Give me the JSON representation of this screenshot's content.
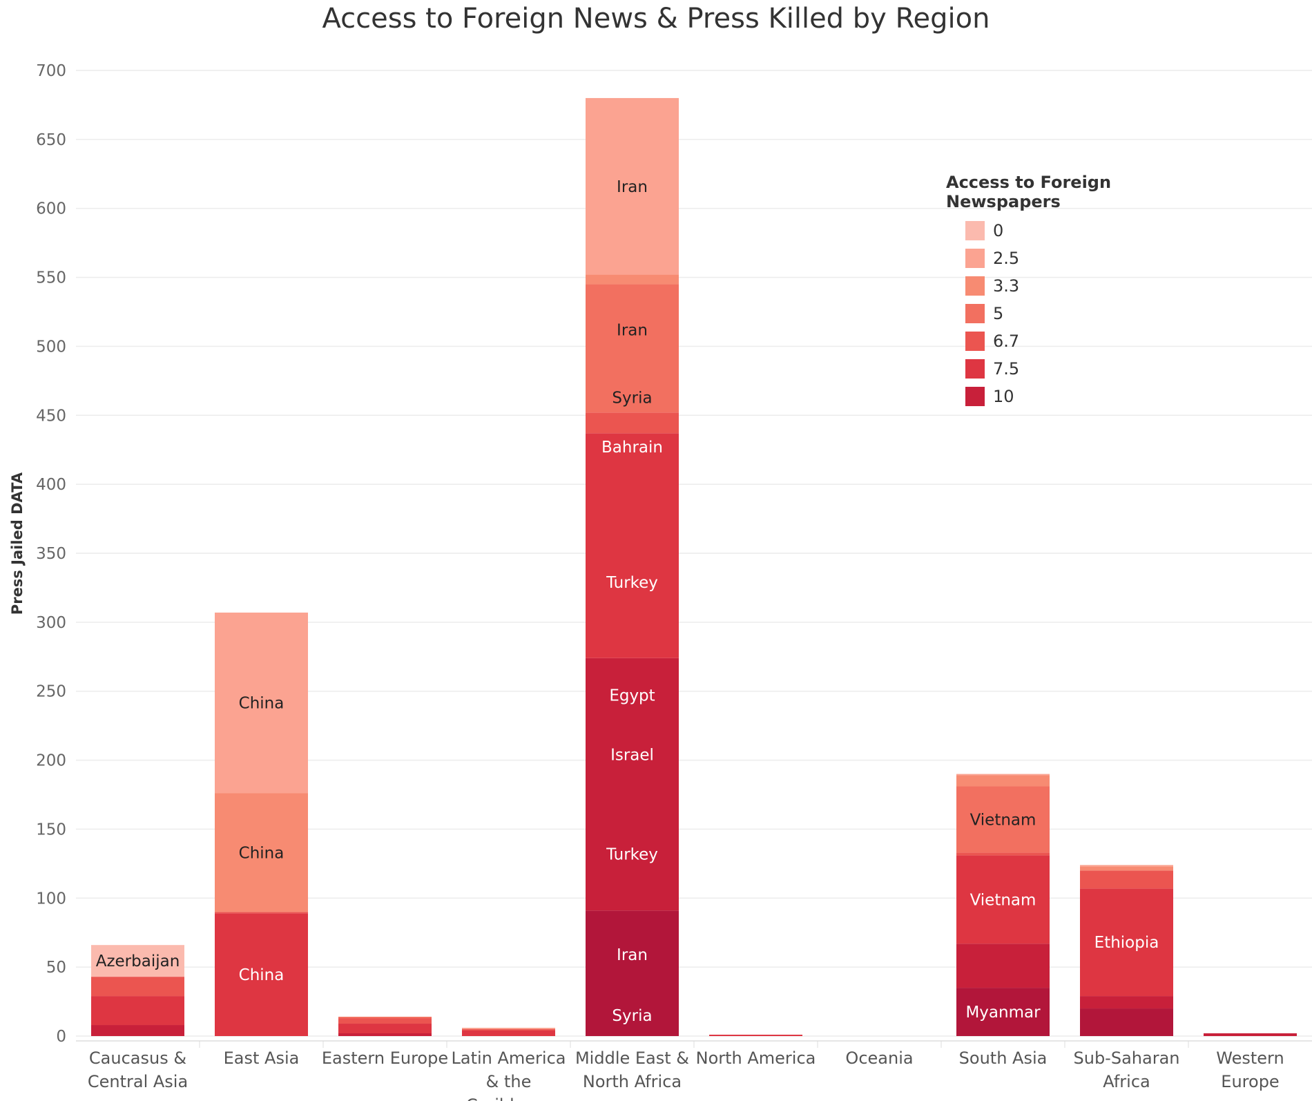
{
  "chart_data": {
    "type": "bar",
    "stacked": true,
    "title": "Access to Foreign News & Press Killed  by Region",
    "ylabel": "Press Jailed DATA",
    "xlabel": "",
    "ylim": [
      -8,
      715
    ],
    "yticks": [
      0,
      50,
      100,
      150,
      200,
      250,
      300,
      350,
      400,
      450,
      500,
      550,
      600,
      650,
      700
    ],
    "grid": true,
    "legend": {
      "title": "Access to Foreign Newspapers",
      "placement": "right",
      "items": [
        {
          "label": "0",
          "color": "#fbbaae"
        },
        {
          "label": "2.5",
          "color": "#fba391"
        },
        {
          "label": "3.3",
          "color": "#f78b72"
        },
        {
          "label": "5",
          "color": "#f27060"
        },
        {
          "label": "6.7",
          "color": "#eb5550"
        },
        {
          "label": "7.5",
          "color": "#de3642"
        },
        {
          "label": "10",
          "color": "#c8203a"
        }
      ]
    },
    "categories": [
      {
        "name": "Caucasus & Central Asia",
        "lines": [
          "Caucasus &",
          "Central Asia"
        ],
        "segments": [
          {
            "value": 8,
            "color": "#c8203a",
            "label": ""
          },
          {
            "value": 21,
            "color": "#de3642",
            "label": ""
          },
          {
            "value": 14,
            "color": "#eb5550",
            "label": ""
          },
          {
            "value": 23,
            "color": "#fbbaae",
            "label": "Azerbaijan",
            "dark": true
          }
        ]
      },
      {
        "name": "East Asia",
        "lines": [
          "East Asia"
        ],
        "segments": [
          {
            "value": 89,
            "color": "#de3642",
            "label": "China"
          },
          {
            "value": 1,
            "color": "#eb5550",
            "label": ""
          },
          {
            "value": 86,
            "color": "#f78b72",
            "label": "China",
            "dark": true
          },
          {
            "value": 131,
            "color": "#fba391",
            "label": "China",
            "dark": true
          }
        ]
      },
      {
        "name": "Eastern Europe",
        "lines": [
          "Eastern Europe"
        ],
        "segments": [
          {
            "value": 2,
            "color": "#c8203a",
            "label": ""
          },
          {
            "value": 7,
            "color": "#de3642",
            "label": ""
          },
          {
            "value": 4,
            "color": "#eb5550",
            "label": ""
          },
          {
            "value": 1,
            "color": "#f27060",
            "label": ""
          }
        ]
      },
      {
        "name": "Latin America & the Caribbean",
        "lines": [
          "Latin America",
          "& the",
          "Caribbean"
        ],
        "segments": [
          {
            "value": 4,
            "color": "#de3642",
            "label": ""
          },
          {
            "value": 1,
            "color": "#eb5550",
            "label": ""
          },
          {
            "value": 1,
            "color": "#fba391",
            "label": ""
          }
        ]
      },
      {
        "name": "Middle East & North Africa",
        "lines": [
          "Middle East &",
          "North Africa"
        ],
        "segments": [
          {
            "value": 91,
            "color": "#b2163a",
            "label": "",
            "labels": [
              {
                "text": "Syria",
                "at": 15
              },
              {
                "text": "Iran",
                "at": 59
              }
            ]
          },
          {
            "value": 183,
            "color": "#c8203a",
            "label": "",
            "labels": [
              {
                "text": "Turkey",
                "at": 132
              },
              {
                "text": "Israel",
                "at": 204
              },
              {
                "text": "Egypt",
                "at": 247
              }
            ]
          },
          {
            "value": 163,
            "color": "#de3642",
            "label": "",
            "labels": [
              {
                "text": "Turkey",
                "at": 329
              },
              {
                "text": "Bahrain",
                "at": 427
              }
            ]
          },
          {
            "value": 15,
            "color": "#eb5550",
            "label": ""
          },
          {
            "value": 93,
            "color": "#f27060",
            "label": "",
            "dark": true,
            "labels": [
              {
                "text": "Syria",
                "at": 463
              },
              {
                "text": "Iran",
                "at": 512
              }
            ]
          },
          {
            "value": 7,
            "color": "#f78b72",
            "label": ""
          },
          {
            "value": 128,
            "color": "#fba391",
            "label": "Iran",
            "dark": true
          }
        ]
      },
      {
        "name": "North America",
        "lines": [
          "North America"
        ],
        "segments": [
          {
            "value": 1,
            "color": "#de3642",
            "label": ""
          }
        ]
      },
      {
        "name": "Oceania",
        "lines": [
          "Oceania"
        ],
        "segments": []
      },
      {
        "name": "South Asia",
        "lines": [
          "South Asia"
        ],
        "segments": [
          {
            "value": 35,
            "color": "#b2163a",
            "label": "Myanmar"
          },
          {
            "value": 32,
            "color": "#c8203a",
            "label": ""
          },
          {
            "value": 64,
            "color": "#de3642",
            "label": "Vietnam"
          },
          {
            "value": 2,
            "color": "#eb5550",
            "label": ""
          },
          {
            "value": 48,
            "color": "#f27060",
            "label": "Vietnam",
            "dark": true
          },
          {
            "value": 8,
            "color": "#f78b72",
            "label": ""
          },
          {
            "value": 1,
            "color": "#fba391",
            "label": ""
          }
        ]
      },
      {
        "name": "Sub-Saharan Africa",
        "lines": [
          "Sub-Saharan",
          "Africa"
        ],
        "segments": [
          {
            "value": 20,
            "color": "#b2163a",
            "label": ""
          },
          {
            "value": 9,
            "color": "#c8203a",
            "label": ""
          },
          {
            "value": 78,
            "color": "#de3642",
            "label": "Ethiopia"
          },
          {
            "value": 13,
            "color": "#eb5550",
            "label": ""
          },
          {
            "value": 3,
            "color": "#f78b72",
            "label": ""
          },
          {
            "value": 1,
            "color": "#fba391",
            "label": ""
          }
        ]
      },
      {
        "name": "Western Europe",
        "lines": [
          "Western",
          "Europe"
        ],
        "segments": [
          {
            "value": 2,
            "color": "#c8203a",
            "label": ""
          }
        ]
      }
    ]
  }
}
